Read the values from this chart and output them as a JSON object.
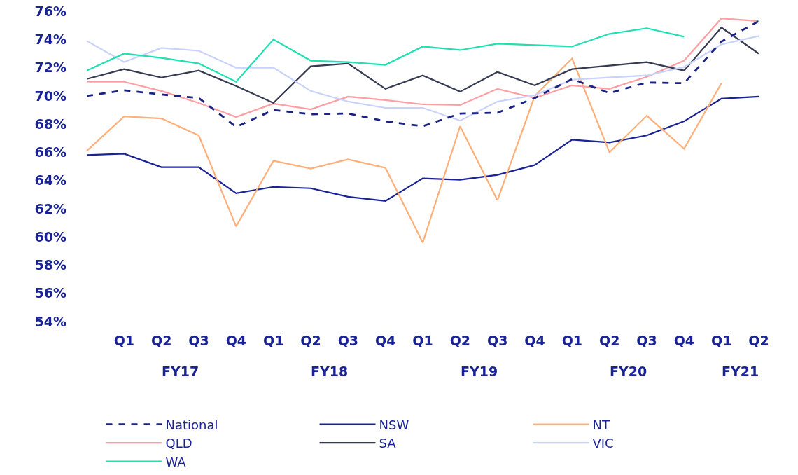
{
  "chart_data": {
    "type": "line",
    "categories": [
      null,
      "Q1",
      "Q2",
      "Q3",
      "Q4",
      "Q1",
      "Q2",
      "Q3",
      "Q4",
      "Q1",
      "Q2",
      "Q3",
      "Q4",
      "Q1",
      "Q2",
      "Q3",
      "Q4",
      "Q1",
      "Q2"
    ],
    "annotations": [
      "FY17",
      "FY18",
      "FY19",
      "FY20",
      "FY21"
    ],
    "ylim": [
      54,
      76.8
    ],
    "yticks": [
      {
        "value": 54,
        "label": "54%"
      },
      {
        "value": 56,
        "label": "56%"
      },
      {
        "value": 58,
        "label": "58%"
      },
      {
        "value": 60,
        "label": "60%"
      },
      {
        "value": 62,
        "label": "62%"
      },
      {
        "value": 64,
        "label": "64%"
      },
      {
        "value": 66,
        "label": "66%"
      },
      {
        "value": 68,
        "label": "68%"
      },
      {
        "value": 70,
        "label": "70%"
      },
      {
        "value": 72,
        "label": "72%"
      },
      {
        "value": 74,
        "label": "74%"
      },
      {
        "value": 76,
        "label": "76%"
      }
    ],
    "grid": false,
    "legend": "bottom",
    "marker": "none",
    "series": [
      {
        "name": "National",
        "color": "#1a2383",
        "line_style": "dashed",
        "values": [
          70.0,
          70.4,
          70.1,
          69.85,
          67.8,
          69.0,
          68.7,
          68.75,
          68.2,
          67.85,
          68.75,
          68.8,
          69.85,
          71.2,
          70.2,
          70.95,
          70.9,
          73.85,
          75.3
        ]
      },
      {
        "name": "NSW",
        "color": "#1a2396",
        "line_style": "solid",
        "values": [
          65.8,
          65.9,
          64.95,
          64.95,
          63.1,
          63.55,
          63.45,
          62.85,
          62.55,
          64.15,
          64.05,
          64.4,
          65.1,
          66.9,
          66.7,
          67.2,
          68.2,
          69.8,
          69.95
        ]
      },
      {
        "name": "NT",
        "color": "#ffb07a",
        "line_style": "solid",
        "values": [
          66.1,
          68.55,
          68.4,
          67.2,
          60.75,
          65.4,
          64.85,
          65.5,
          64.9,
          59.6,
          67.85,
          62.6,
          70.0,
          72.65,
          66.0,
          68.6,
          66.25,
          70.9,
          null
        ]
      },
      {
        "name": "QLD",
        "color": "#ff9ea3",
        "line_style": "solid",
        "values": [
          71.0,
          71.0,
          70.35,
          69.5,
          68.5,
          69.45,
          69.05,
          69.95,
          69.7,
          69.4,
          69.35,
          70.5,
          69.85,
          70.75,
          70.5,
          71.35,
          72.5,
          75.5,
          75.3
        ]
      },
      {
        "name": "SA",
        "color": "#363b52",
        "line_style": "solid",
        "values": [
          71.2,
          71.9,
          71.3,
          71.8,
          70.7,
          69.5,
          72.1,
          72.3,
          70.5,
          71.45,
          70.3,
          71.7,
          70.75,
          71.9,
          72.15,
          72.4,
          71.8,
          74.85,
          73.0
        ]
      },
      {
        "name": "VIC",
        "color": "#c8d2fb",
        "line_style": "solid",
        "values": [
          73.9,
          72.4,
          73.4,
          73.2,
          72.0,
          72.0,
          70.35,
          69.6,
          69.15,
          69.15,
          68.25,
          69.6,
          70.05,
          71.15,
          71.3,
          71.45,
          72.05,
          73.65,
          74.25
        ]
      },
      {
        "name": "WA",
        "color": "#1ee0b0",
        "line_style": "solid",
        "values": [
          71.8,
          73.0,
          72.7,
          72.3,
          71.0,
          74.0,
          72.5,
          72.4,
          72.2,
          73.5,
          73.25,
          73.7,
          73.6,
          73.5,
          74.4,
          74.8,
          74.2,
          null,
          null
        ]
      }
    ]
  }
}
